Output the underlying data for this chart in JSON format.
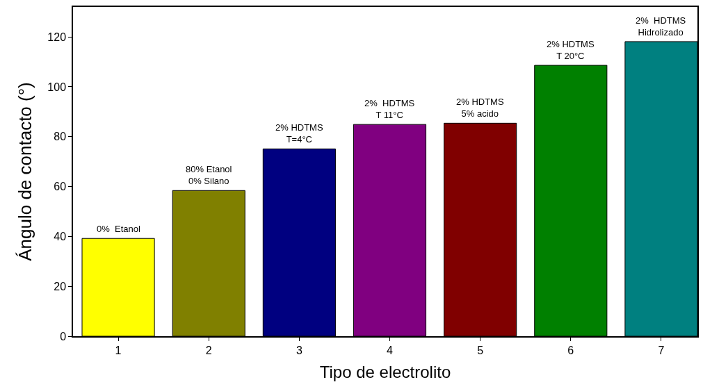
{
  "chart_data": {
    "type": "bar",
    "xlabel": "Tipo de electrolito",
    "ylabel": "Ángulo de contacto (°)",
    "x": [
      1,
      2,
      3,
      4,
      5,
      6,
      7
    ],
    "values": [
      39.2,
      58.4,
      75.1,
      84.9,
      85.4,
      108.6,
      118.1
    ],
    "colors": [
      "#ffff00",
      "#808000",
      "#000080",
      "#800080",
      "#800000",
      "#008000",
      "#008080"
    ],
    "xlim": [
      0.5,
      7.4
    ],
    "xticks": [
      1,
      2,
      3,
      4,
      5,
      6,
      7
    ],
    "ylim": [
      0,
      132
    ],
    "yticks": [
      0,
      20,
      40,
      60,
      80,
      100,
      120
    ],
    "annotations": [
      {
        "text": "0%  Etanol",
        "x": 1,
        "y": 39.2
      },
      {
        "text": "80% Etanol\n0% Silano",
        "x": 2,
        "y": 58.4
      },
      {
        "text": "2% HDTMS\nT=4°C",
        "x": 3,
        "y": 75.1
      },
      {
        "text": "2%  HDTMS\nT 11°C",
        "x": 4,
        "y": 84.9
      },
      {
        "text": "2% HDTMS\n5% acido",
        "x": 5,
        "y": 85.4
      },
      {
        "text": "2% HDTMS\nT 20°C",
        "x": 6,
        "y": 108.6
      },
      {
        "text": "2%  HDTMS\nHidrolizado",
        "x": 7,
        "y": 118.1
      }
    ]
  }
}
